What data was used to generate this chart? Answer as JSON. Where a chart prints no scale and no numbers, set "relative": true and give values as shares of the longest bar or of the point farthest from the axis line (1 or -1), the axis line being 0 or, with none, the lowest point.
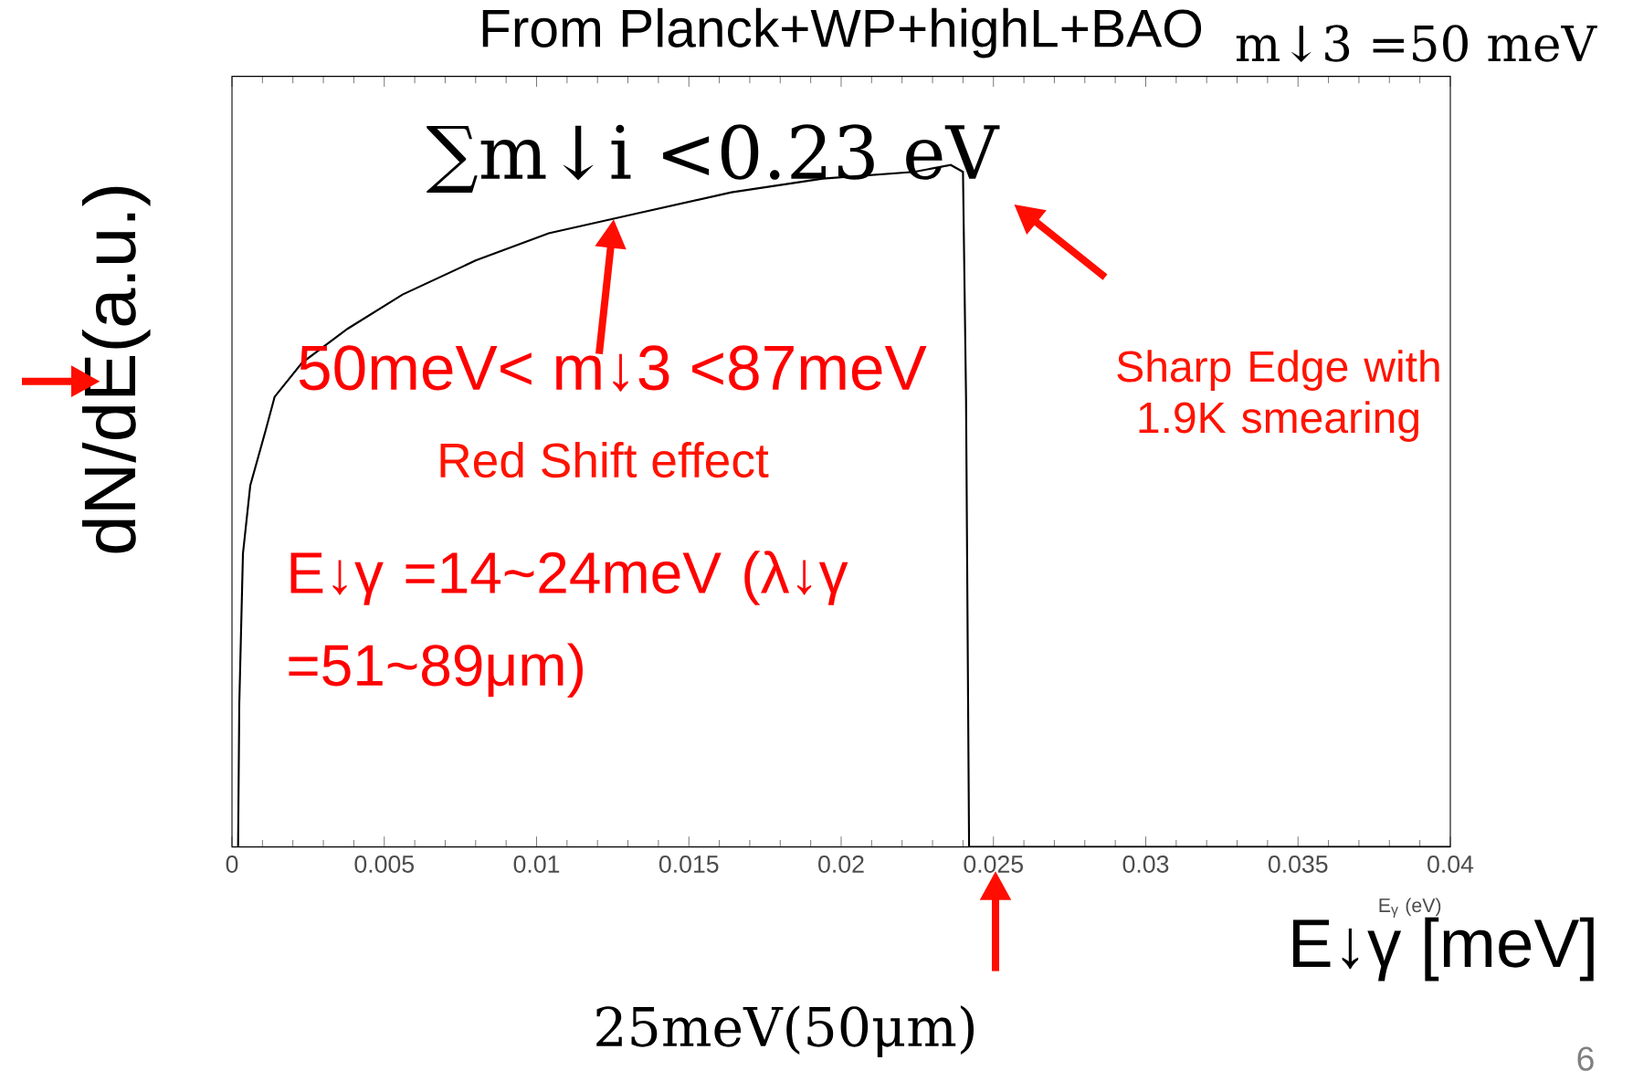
{
  "chart_data": {
    "type": "line",
    "title": "From Planck+WP+highL+BAO",
    "xlabel": "E$_{γ}$ (eV)",
    "ylabel": "dN/dE(a.u.)",
    "relative": true,
    "x": [
      0.0002,
      0.00024,
      0.00036,
      0.0006,
      0.0011,
      0.0014,
      0.0023,
      0.0038,
      0.0056,
      0.008,
      0.0104,
      0.0134,
      0.0164,
      0.0194,
      0.0224,
      0.0236,
      0.024,
      0.0241,
      0.0242,
      0.04
    ],
    "series": [
      {
        "color": "#000000",
        "values": [
          0,
          0.21,
          0.43,
          0.53,
          0.61,
          0.66,
          0.71,
          0.76,
          0.81,
          0.86,
          0.9,
          0.93,
          0.96,
          0.98,
          0.99,
          1,
          0.99,
          0.66,
          0,
          0
        ]
      }
    ],
    "xlim": [
      0,
      0.04
    ],
    "xticks": [
      0,
      0.005,
      0.01,
      0.015,
      0.02,
      0.025,
      0.03,
      0.035,
      0.04
    ],
    "annotations": [
      "∑m↓i <0.23 eV",
      "m↓3 =50 meV",
      "50meV< m↓3 <87meV",
      "Red Shift effect",
      "Sharp Edge with 1.9K smearing",
      "E↓γ =14~24meV (λ↓γ =51~89μm)",
      "25meV(50μm)",
      "E↓γ [meV]",
      "6"
    ]
  }
}
